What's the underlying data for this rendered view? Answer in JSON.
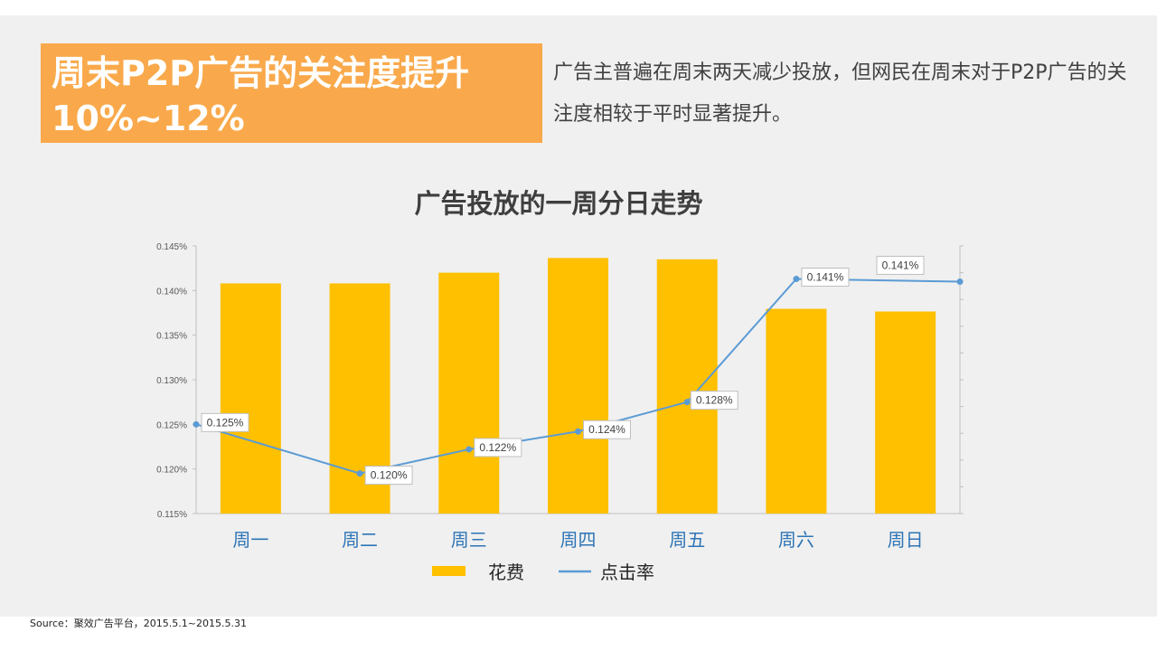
{
  "headline": {
    "line1": "周末P2P广告的关注度提升",
    "line2": "10%~12%"
  },
  "description": "广告主普遍在周末两天减少投放，但网民在周末对于P2P广告的关注度相较于平时显著提升。",
  "source": "Source：聚效广告平台，2015.5.1~2015.5.31",
  "colors": {
    "bar": "#ffc000",
    "line": "#5b9bd5",
    "headline_bg": "#f9a94b",
    "category_label": "#2e75b6"
  },
  "chart_data": {
    "type": "bar",
    "title": "广告投放的一周分日走势",
    "categories": [
      "周一",
      "周二",
      "周三",
      "周四",
      "周五",
      "周六",
      "周日"
    ],
    "series": [
      {
        "name": "花费",
        "type": "bar",
        "axis": "secondary",
        "values": [
          0.86,
          0.86,
          0.9,
          0.955,
          0.95,
          0.765,
          0.755
        ]
      },
      {
        "name": "点击率",
        "type": "line",
        "axis": "primary",
        "values": [
          0.125,
          0.1195,
          0.1222,
          0.1242,
          0.1275,
          0.1413,
          0.141
        ],
        "data_labels": [
          "0.125%",
          "0.120%",
          "0.122%",
          "0.124%",
          "0.128%",
          "0.141%",
          "0.141%"
        ]
      }
    ],
    "y_primary": {
      "range": [
        0.115,
        0.145
      ],
      "ticks": [
        "0.115%",
        "0.120%",
        "0.125%",
        "0.130%",
        "0.135%",
        "0.140%",
        "0.145%"
      ]
    },
    "y_secondary": {
      "range": [
        0,
        1
      ]
    },
    "legend": [
      "花费",
      "点击率"
    ],
    "legend_position": "bottom",
    "grid": false
  }
}
